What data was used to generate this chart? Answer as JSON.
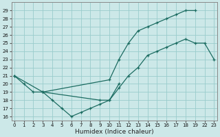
{
  "xlabel": "Humidex (Indice chaleur)",
  "bg_color": "#cce8e8",
  "line_color": "#1a6b60",
  "grid_color": "#99cccc",
  "series": [
    {
      "x": [
        0,
        1,
        2,
        3,
        10,
        11,
        12,
        13,
        14,
        15,
        16,
        17,
        18,
        19
      ],
      "y": [
        21,
        20,
        19,
        19,
        20.5,
        23,
        25,
        26.5,
        27,
        27.5,
        28,
        28.5,
        29,
        29
      ]
    },
    {
      "x": [
        3,
        4,
        5,
        6,
        7,
        8,
        9,
        10,
        11
      ],
      "y": [
        19,
        18,
        17,
        16,
        16.5,
        17,
        17.5,
        18,
        20
      ]
    },
    {
      "x": [
        0,
        3,
        9,
        10,
        11,
        12,
        13,
        14,
        15,
        16,
        17,
        18,
        19,
        22,
        23
      ],
      "y": [
        21,
        19,
        18,
        18,
        19.5,
        21,
        22,
        23.5,
        24,
        24.5,
        25,
        25.5,
        25,
        25,
        23
      ]
    }
  ],
  "ylim": [
    15.5,
    30.0
  ],
  "xlim": [
    -0.3,
    23.5
  ],
  "yticks": [
    16,
    17,
    18,
    19,
    20,
    21,
    22,
    23,
    24,
    25,
    26,
    27,
    28,
    29
  ],
  "xticks": [
    0,
    1,
    2,
    3,
    4,
    5,
    6,
    7,
    8,
    9,
    10,
    11,
    12,
    13,
    14,
    15,
    16,
    17,
    18,
    19,
    22,
    23
  ],
  "xtick_labels": [
    "0",
    "1",
    "2",
    "3",
    "4",
    "5",
    "6",
    "7",
    "8",
    "9",
    "10",
    "11",
    "12",
    "13",
    "14",
    "15",
    "16",
    "17",
    "18",
    "19",
    "22",
    "23"
  ]
}
